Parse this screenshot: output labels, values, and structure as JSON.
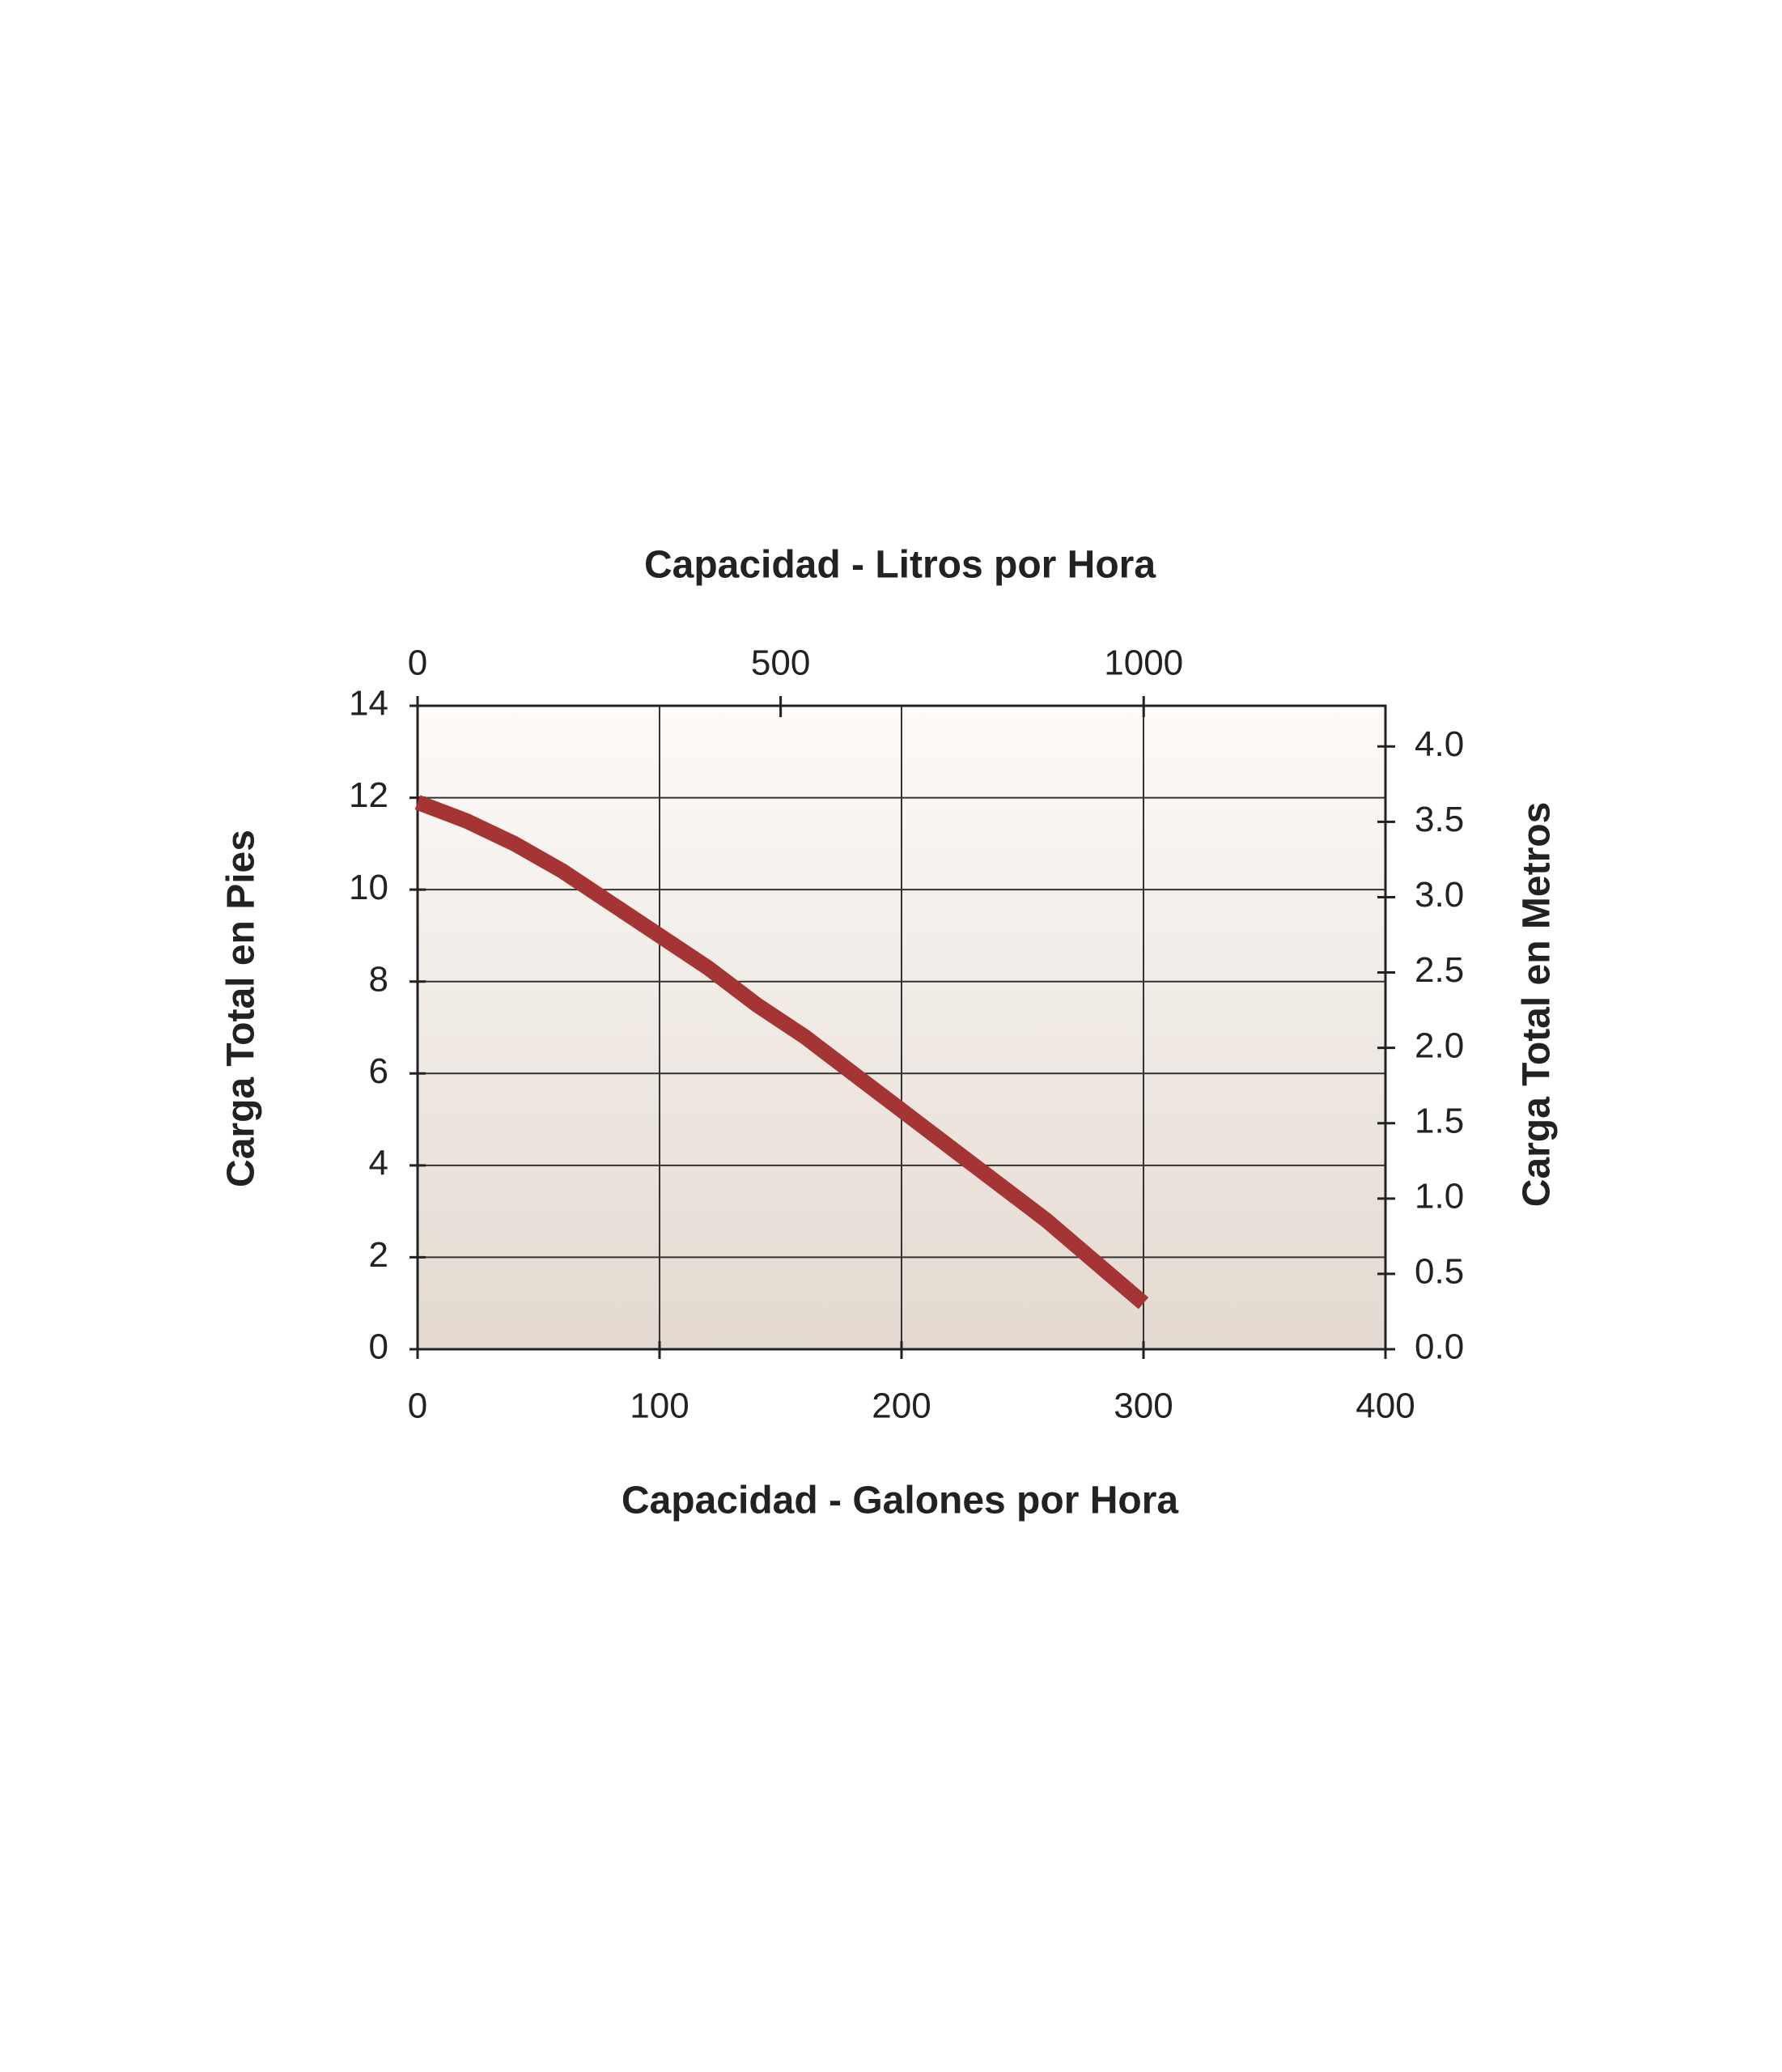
{
  "chart_data": {
    "type": "line",
    "title": "Capacidad - Litros por Hora",
    "x_label": "Capacidad - Galones por Hora",
    "y_label": "Carga Total en Pies",
    "y2_label": "Carga Total en Metros",
    "x": [
      0,
      20,
      40,
      60,
      80,
      100,
      120,
      140,
      160,
      180,
      200,
      220,
      240,
      260,
      280,
      300
    ],
    "series": [
      {
        "color": "#a53434",
        "values": [
          11.9,
          11.5,
          11.0,
          10.4,
          9.7,
          9.0,
          8.3,
          7.5,
          6.8,
          6.0,
          5.2,
          4.4,
          3.6,
          2.8,
          1.9,
          1.0
        ]
      }
    ],
    "xlim": [
      0,
      400
    ],
    "xticks": [
      0,
      100,
      200,
      300,
      400
    ],
    "ylim": [
      0,
      14
    ],
    "yticks": [
      0,
      2,
      4,
      6,
      8,
      10,
      12,
      14
    ],
    "x2lim": [
      0,
      1333
    ],
    "x2ticks": [
      0,
      500,
      1000
    ],
    "y2lim": [
      0,
      4.27
    ],
    "y2ticks": [
      {
        "value": 0,
        "label": "0.0"
      },
      0.5,
      {
        "value": 1,
        "label": "1.0"
      },
      1.5,
      {
        "value": 2,
        "label": "2.0"
      },
      2.5,
      {
        "value": 3,
        "label": "3.0"
      },
      3.5,
      {
        "value": 4,
        "label": "4.0"
      }
    ],
    "grid": true
  }
}
